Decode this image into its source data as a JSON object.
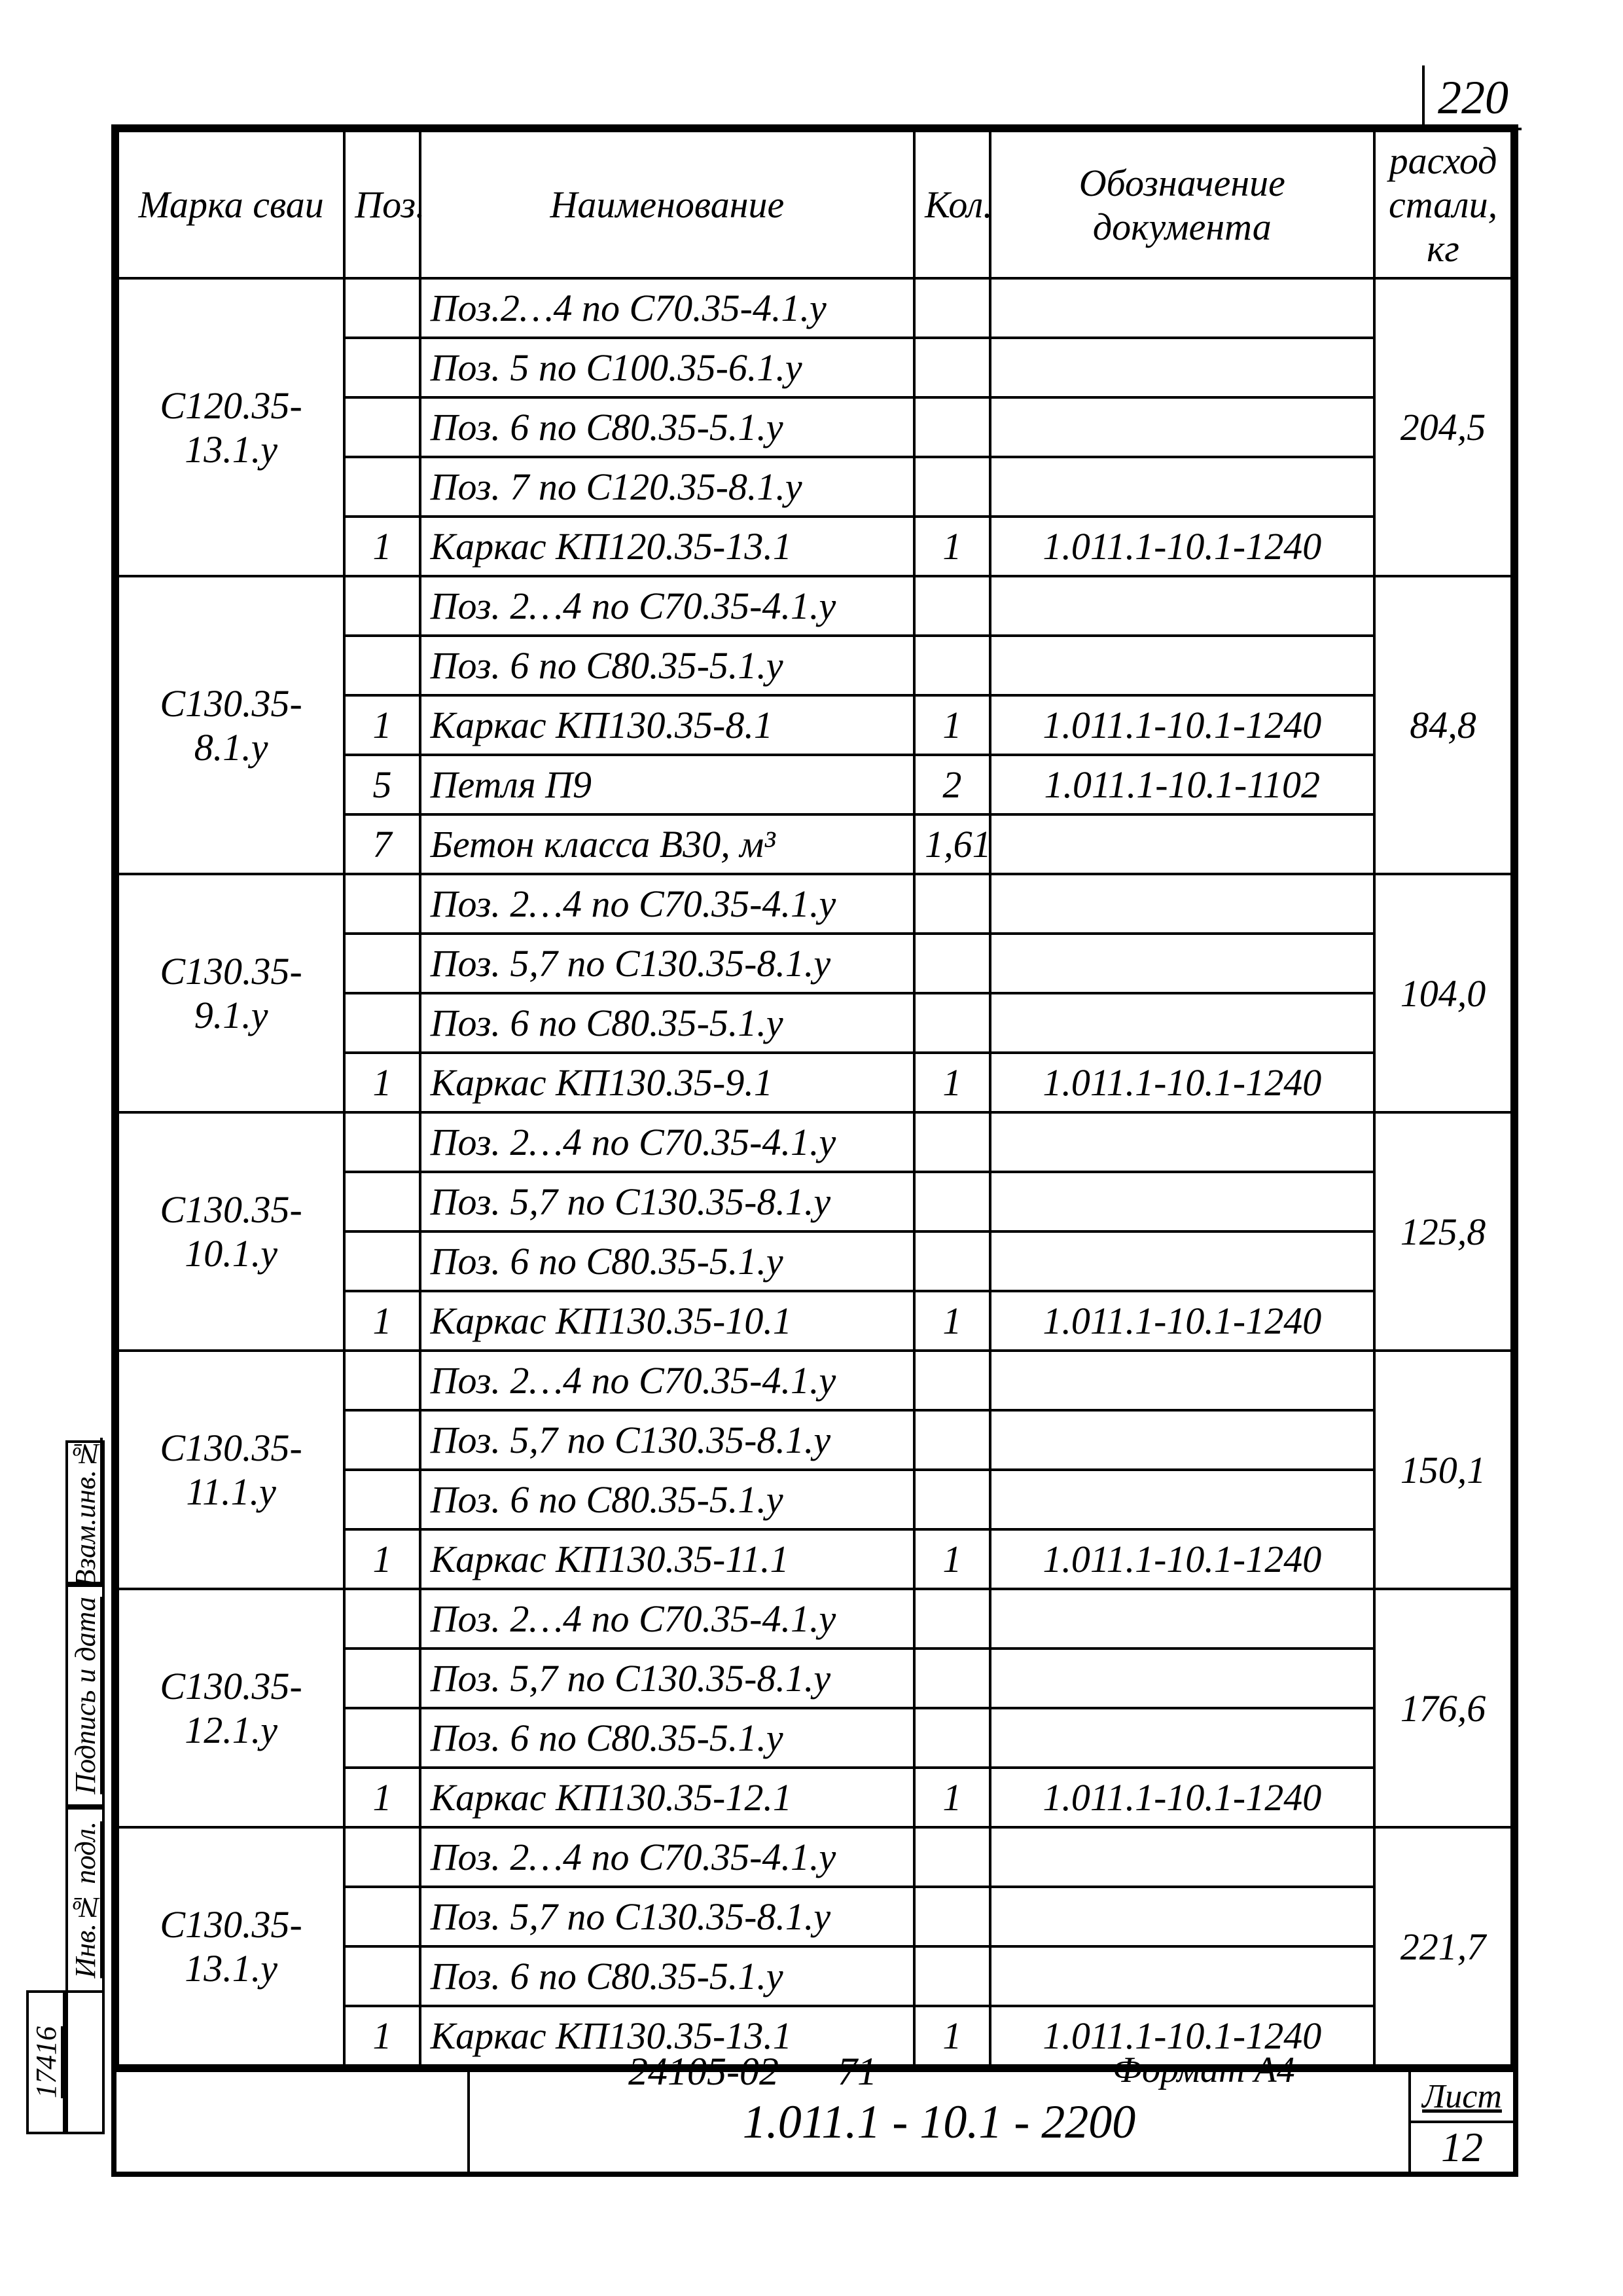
{
  "page_number_top": "220",
  "headers": {
    "marka": "Марка сваи",
    "poz": "Поз.",
    "name": "Наименование",
    "kol": "Кол.",
    "doc": "Обозначение документа",
    "steel": "расход стали, кг"
  },
  "groups": [
    {
      "marka": "С120.35-13.1.у",
      "steel": "204,5",
      "rows": [
        {
          "poz": "",
          "name": "Поз.2…4 по С70.35-4.1.у",
          "kol": "",
          "doc": ""
        },
        {
          "poz": "",
          "name": "Поз. 5 по С100.35-6.1.у",
          "kol": "",
          "doc": ""
        },
        {
          "poz": "",
          "name": "Поз. 6 по С80.35-5.1.у",
          "kol": "",
          "doc": ""
        },
        {
          "poz": "",
          "name": "Поз. 7 по С120.35-8.1.у",
          "kol": "",
          "doc": ""
        },
        {
          "poz": "1",
          "name": "Каркас КП120.35-13.1",
          "kol": "1",
          "doc": "1.011.1-10.1-1240"
        }
      ]
    },
    {
      "marka": "С130.35-8.1.у",
      "steel": "84,8",
      "rows": [
        {
          "poz": "",
          "name": "Поз. 2…4 по С70.35-4.1.у",
          "kol": "",
          "doc": ""
        },
        {
          "poz": "",
          "name": "Поз. 6 по С80.35-5.1.у",
          "kol": "",
          "doc": ""
        },
        {
          "poz": "1",
          "name": "Каркас КП130.35-8.1",
          "kol": "1",
          "doc": "1.011.1-10.1-1240"
        },
        {
          "poz": "5",
          "name": "Петля П9",
          "kol": "2",
          "doc": "1.011.1-10.1-1102"
        },
        {
          "poz": "7",
          "name": "Бетон класса В30, м³",
          "kol": "1,61",
          "doc": ""
        }
      ]
    },
    {
      "marka": "С130.35-9.1.у",
      "steel": "104,0",
      "rows": [
        {
          "poz": "",
          "name": "Поз. 2…4 по С70.35-4.1.у",
          "kol": "",
          "doc": ""
        },
        {
          "poz": "",
          "name": "Поз. 5,7 по С130.35-8.1.у",
          "kol": "",
          "doc": ""
        },
        {
          "poz": "",
          "name": "Поз. 6 по С80.35-5.1.у",
          "kol": "",
          "doc": ""
        },
        {
          "poz": "1",
          "name": "Каркас КП130.35-9.1",
          "kol": "1",
          "doc": "1.011.1-10.1-1240"
        }
      ]
    },
    {
      "marka": "С130.35-10.1.у",
      "steel": "125,8",
      "rows": [
        {
          "poz": "",
          "name": "Поз. 2…4 по С70.35-4.1.у",
          "kol": "",
          "doc": ""
        },
        {
          "poz": "",
          "name": "Поз. 5,7 по С130.35-8.1.у",
          "kol": "",
          "doc": ""
        },
        {
          "poz": "",
          "name": "Поз. 6 по С80.35-5.1.у",
          "kol": "",
          "doc": ""
        },
        {
          "poz": "1",
          "name": "Каркас КП130.35-10.1",
          "kol": "1",
          "doc": "1.011.1-10.1-1240"
        }
      ]
    },
    {
      "marka": "С130.35-11.1.у",
      "steel": "150,1",
      "rows": [
        {
          "poz": "",
          "name": "Поз. 2…4 по С70.35-4.1.у",
          "kol": "",
          "doc": ""
        },
        {
          "poz": "",
          "name": "Поз. 5,7 по С130.35-8.1.у",
          "kol": "",
          "doc": ""
        },
        {
          "poz": "",
          "name": "Поз. 6 по С80.35-5.1.у",
          "kol": "",
          "doc": ""
        },
        {
          "poz": "1",
          "name": "Каркас КП130.35-11.1",
          "kol": "1",
          "doc": "1.011.1-10.1-1240"
        }
      ]
    },
    {
      "marka": "С130.35-12.1.у",
      "steel": "176,6",
      "rows": [
        {
          "poz": "",
          "name": "Поз. 2…4 по С70.35-4.1.у",
          "kol": "",
          "doc": ""
        },
        {
          "poz": "",
          "name": "Поз. 5,7 по С130.35-8.1.у",
          "kol": "",
          "doc": ""
        },
        {
          "poz": "",
          "name": "Поз. 6 по С80.35-5.1.у",
          "kol": "",
          "doc": ""
        },
        {
          "poz": "1",
          "name": "Каркас КП130.35-12.1",
          "kol": "1",
          "doc": "1.011.1-10.1-1240"
        }
      ]
    },
    {
      "marka": "С130.35-13.1.у",
      "steel": "221,7",
      "rows": [
        {
          "poz": "",
          "name": "Поз. 2…4 по С70.35-4.1.у",
          "kol": "",
          "doc": ""
        },
        {
          "poz": "",
          "name": "Поз. 5,7 по С130.35-8.1.у",
          "kol": "",
          "doc": ""
        },
        {
          "poz": "",
          "name": "Поз. 6 по С80.35-5.1.у",
          "kol": "",
          "doc": ""
        },
        {
          "poz": "1",
          "name": "Каркас КП130.35-13.1",
          "kol": "1",
          "doc": "1.011.1-10.1-1240"
        }
      ]
    }
  ],
  "titleblock": {
    "doc_number": "1.011.1 - 10.1 - 2200",
    "sheet_label": "Лист",
    "sheet_number": "12"
  },
  "side_stamp": {
    "vzam": "Взам.инв.№",
    "podpis": "Подпись и дата",
    "inv_podl": "Инв.№ подл.",
    "inv_value": "17416"
  },
  "footer": {
    "code": "24105-02",
    "page": "71",
    "format": "Формат А4"
  }
}
